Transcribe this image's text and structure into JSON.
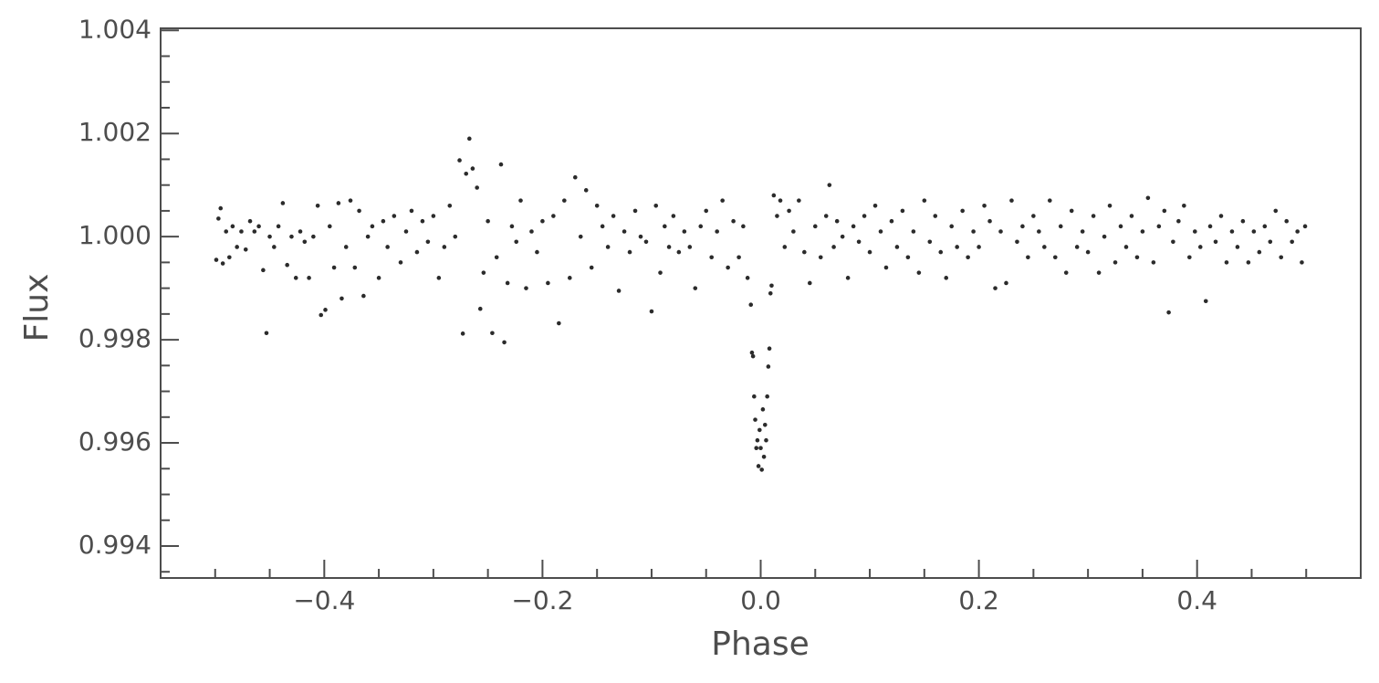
{
  "chart_data": {
    "type": "scatter",
    "xlabel": "Phase",
    "ylabel": "Flux",
    "color": "#2b2b2b",
    "xlim": [
      -0.55,
      0.55
    ],
    "ylim": [
      0.99338,
      1.00404
    ],
    "xticks": [
      {
        "value": -0.4,
        "label": "−0.4"
      },
      {
        "value": -0.2,
        "label": "−0.2"
      },
      {
        "value": 0,
        "label": "0.0"
      },
      0.2,
      0.4
    ],
    "yticks": [
      0.994,
      0.996,
      0.998,
      {
        "value": 1,
        "label": "1.000"
      },
      1.002,
      1.004
    ],
    "xminorticks": [
      -0.5,
      -0.45,
      -0.35,
      -0.3,
      -0.25,
      -0.15,
      -0.1,
      -0.05,
      0.05,
      0.1,
      0.15,
      0.25,
      0.3,
      0.35,
      0.45,
      0.5
    ],
    "yminorticks": [
      0.9935,
      0.9945,
      0.995,
      0.9955,
      0.9965,
      0.997,
      0.9975,
      0.9985,
      0.999,
      0.9995,
      1.0005,
      1.001,
      1.0015,
      1.0025,
      1.003,
      1.0035
    ],
    "x": [
      -0.499,
      -0.497,
      -0.495,
      -0.493,
      -0.49,
      -0.487,
      -0.484,
      -0.48,
      -0.476,
      -0.472,
      -0.468,
      -0.464,
      -0.46,
      -0.456,
      -0.453,
      -0.45,
      -0.446,
      -0.442,
      -0.438,
      -0.434,
      -0.43,
      -0.426,
      -0.422,
      -0.418,
      -0.414,
      -0.41,
      -0.406,
      -0.403,
      -0.399,
      -0.395,
      -0.391,
      -0.387,
      -0.384,
      -0.38,
      -0.376,
      -0.372,
      -0.368,
      -0.364,
      -0.36,
      -0.356,
      -0.35,
      -0.346,
      -0.342,
      -0.336,
      -0.33,
      -0.325,
      -0.32,
      -0.315,
      -0.31,
      -0.305,
      -0.3,
      -0.295,
      -0.29,
      -0.285,
      -0.28,
      -0.276,
      -0.273,
      -0.27,
      -0.267,
      -0.264,
      -0.26,
      -0.257,
      -0.254,
      -0.25,
      -0.246,
      -0.242,
      -0.238,
      -0.235,
      -0.232,
      -0.228,
      -0.224,
      -0.22,
      -0.215,
      -0.21,
      -0.205,
      -0.2,
      -0.195,
      -0.19,
      -0.185,
      -0.18,
      -0.175,
      -0.17,
      -0.165,
      -0.16,
      -0.155,
      -0.15,
      -0.145,
      -0.14,
      -0.135,
      -0.13,
      -0.125,
      -0.12,
      -0.115,
      -0.11,
      -0.105,
      -0.1,
      -0.096,
      -0.092,
      -0.088,
      -0.084,
      -0.08,
      -0.075,
      -0.07,
      -0.065,
      -0.06,
      -0.055,
      -0.05,
      -0.045,
      -0.04,
      -0.035,
      -0.03,
      -0.025,
      -0.02,
      -0.016,
      -0.012,
      -0.009,
      -0.008,
      -0.007,
      -0.006,
      -0.005,
      -0.004,
      -0.003,
      -0.002,
      -0.001,
      0,
      0.001,
      0.002,
      0.003,
      0.004,
      0.005,
      0.006,
      0.007,
      0.008,
      0.009,
      0.01,
      0.012,
      0.015,
      0.018,
      0.022,
      0.026,
      0.03,
      0.035,
      0.04,
      0.045,
      0.05,
      0.055,
      0.06,
      0.063,
      0.067,
      0.07,
      0.075,
      0.08,
      0.085,
      0.09,
      0.095,
      0.1,
      0.105,
      0.11,
      0.115,
      0.12,
      0.125,
      0.13,
      0.135,
      0.14,
      0.145,
      0.15,
      0.155,
      0.16,
      0.165,
      0.17,
      0.175,
      0.18,
      0.185,
      0.19,
      0.195,
      0.2,
      0.205,
      0.21,
      0.215,
      0.22,
      0.225,
      0.23,
      0.235,
      0.24,
      0.245,
      0.25,
      0.255,
      0.26,
      0.265,
      0.27,
      0.275,
      0.28,
      0.285,
      0.29,
      0.295,
      0.3,
      0.305,
      0.31,
      0.315,
      0.32,
      0.325,
      0.33,
      0.335,
      0.34,
      0.345,
      0.35,
      0.355,
      0.36,
      0.365,
      0.37,
      0.374,
      0.378,
      0.383,
      0.388,
      0.393,
      0.398,
      0.403,
      0.408,
      0.412,
      0.417,
      0.422,
      0.427,
      0.432,
      0.437,
      0.442,
      0.447,
      0.452,
      0.457,
      0.462,
      0.467,
      0.472,
      0.477,
      0.482,
      0.487,
      0.492,
      0.496,
      0.499
    ],
    "values": [
      0.99955,
      1.00035,
      1.00055,
      0.99948,
      1.0001,
      0.9996,
      1.0002,
      0.9998,
      1.0001,
      0.99975,
      1.0003,
      1.0001,
      1.0002,
      0.99935,
      0.99813,
      1.0,
      0.9998,
      1.0002,
      1.00065,
      0.99945,
      1.0,
      0.9992,
      1.0001,
      0.9999,
      0.9992,
      1.0,
      1.0006,
      0.99848,
      0.99858,
      1.0002,
      0.9994,
      1.00065,
      0.9988,
      0.9998,
      1.0007,
      0.9994,
      1.0005,
      0.99885,
      1.0,
      1.0002,
      0.9992,
      1.0003,
      0.9998,
      1.0004,
      0.9995,
      1.0001,
      1.0005,
      0.9997,
      1.0003,
      0.9999,
      1.0004,
      0.9992,
      0.9998,
      1.0006,
      1.0,
      1.00148,
      0.99812,
      1.00122,
      1.0019,
      1.00132,
      1.00095,
      0.9986,
      0.9993,
      1.0003,
      0.99813,
      0.9996,
      1.0014,
      0.99795,
      0.9991,
      1.0002,
      0.9999,
      1.0007,
      0.999,
      1.0001,
      0.9997,
      1.0003,
      0.9991,
      1.0004,
      0.99832,
      1.0007,
      0.9992,
      1.00115,
      1.0,
      1.0009,
      0.9994,
      1.0006,
      1.0002,
      0.9998,
      1.0004,
      0.99895,
      1.0001,
      0.9997,
      1.0005,
      1.0,
      0.9999,
      0.99855,
      1.0006,
      0.9993,
      1.0002,
      0.9998,
      1.0004,
      0.9997,
      1.0001,
      0.9998,
      0.999,
      1.0002,
      1.0005,
      0.9996,
      1.0001,
      1.0007,
      0.9994,
      1.0003,
      0.9996,
      1.0002,
      0.9992,
      0.99868,
      0.99775,
      0.99768,
      0.9969,
      0.99645,
      0.9959,
      0.99605,
      0.99555,
      0.99625,
      0.9959,
      0.99548,
      0.99665,
      0.99573,
      0.99635,
      0.99605,
      0.9969,
      0.99748,
      0.99783,
      0.9989,
      0.99905,
      1.0008,
      1.0004,
      1.0007,
      0.9998,
      1.0005,
      1.0001,
      1.0007,
      0.9997,
      0.9991,
      1.0002,
      0.9996,
      1.0004,
      1.001,
      0.9998,
      1.0003,
      1.0,
      0.9992,
      1.0002,
      0.9999,
      1.0004,
      0.9997,
      1.0006,
      1.0001,
      0.9994,
      1.0003,
      0.9998,
      1.0005,
      0.9996,
      1.0001,
      0.9993,
      1.0007,
      0.9999,
      1.0004,
      0.9997,
      0.9992,
      1.0002,
      0.9998,
      1.0005,
      0.9996,
      1.0001,
      0.9998,
      1.0006,
      1.0003,
      0.999,
      1.0001,
      0.9991,
      1.0007,
      0.9999,
      1.0002,
      0.9996,
      1.0004,
      1.0001,
      0.9998,
      1.0007,
      0.9996,
      1.0002,
      0.9993,
      1.0005,
      0.9998,
      1.0001,
      0.9997,
      1.0004,
      0.9993,
      1.0,
      1.0006,
      0.9995,
      1.0002,
      0.9998,
      1.0004,
      0.9996,
      1.0001,
      1.00075,
      0.9995,
      1.0002,
      1.0005,
      0.99853,
      0.9999,
      1.0003,
      1.0006,
      0.9996,
      1.0001,
      0.9998,
      0.99875,
      1.0002,
      0.9999,
      1.0004,
      0.9995,
      1.0001,
      0.9998,
      1.0003,
      0.9995,
      1.0001,
      0.9997,
      1.0002,
      0.9999,
      1.0005,
      0.9996,
      1.0003,
      0.9999,
      1.0001,
      0.9995,
      1.0002
    ]
  }
}
